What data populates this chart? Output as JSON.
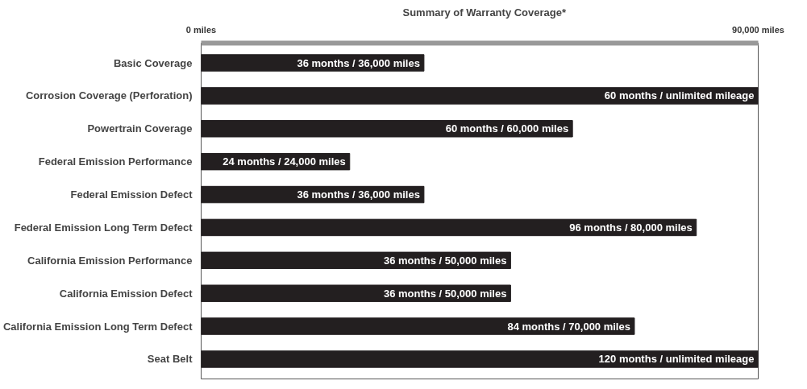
{
  "chart_data": {
    "type": "bar",
    "orientation": "horizontal",
    "title": "Summary of Warranty Coverage*",
    "categories": [
      "Basic Coverage",
      "Corrosion Coverage (Perforation)",
      "Powertrain Coverage",
      "Federal Emission Performance",
      "Federal Emission Defect",
      "Federal Emission Long Term Defect",
      "California Emission Performance",
      "California Emission Defect",
      "California Emission Long Term Defect",
      "Seat Belt"
    ],
    "values": [
      36000,
      90000,
      60000,
      24000,
      36000,
      80000,
      50000,
      50000,
      70000,
      90000
    ],
    "value_labels": [
      "36 months / 36,000 miles",
      null,
      "60 months / 60,000 miles",
      "24 months / 24,000 miles",
      "36 months / 36,000 miles",
      "96 months / 80,000 miles",
      "36 months / 50,000 miles",
      "36 months / 50,000 miles",
      "84 months / 70,000 miles",
      null
    ],
    "annotations": [
      {
        "text": "60 months / unlimited mileage",
        "x": 90000,
        "y": "Corrosion Coverage (Perforation)"
      },
      {
        "text": "120 months / unlimited mileage",
        "x": 90000,
        "y": "Seat Belt"
      }
    ],
    "color": "#231f20",
    "xlim": [
      0,
      90000
    ],
    "xticks": [
      {
        "value": 0,
        "label": "0 miles"
      },
      {
        "value": 90000,
        "label": "90,000 miles"
      }
    ],
    "grid": false
  }
}
